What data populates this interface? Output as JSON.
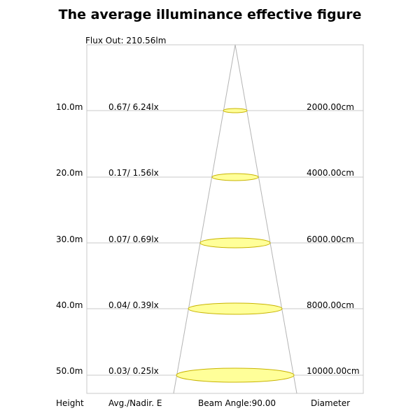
{
  "title": "The average illuminance effective figure",
  "flux_out": "Flux Out: 210.56lm",
  "rows": [
    {
      "height": "10.0m",
      "illuminance": "0.67/ 6.24lx",
      "diameter": "2000.00cm"
    },
    {
      "height": "20.0m",
      "illuminance": "0.17/ 1.56lx",
      "diameter": "4000.00cm"
    },
    {
      "height": "30.0m",
      "illuminance": "0.07/ 0.69lx",
      "diameter": "6000.00cm"
    },
    {
      "height": "40.0m",
      "illuminance": "0.04/ 0.39lx",
      "diameter": "8000.00cm"
    },
    {
      "height": "50.0m",
      "illuminance": "0.03/ 0.25lx",
      "diameter": "10000.00cm"
    }
  ],
  "footer": {
    "height_label": "Height",
    "illuminance_label": "Avg./Nadir. E",
    "beam_angle": "Beam Angle:90.00",
    "diameter_label": "Diameter"
  },
  "colors": {
    "spot_fill": "#ffff99",
    "spot_stroke": "#c8b400",
    "line": "#c8c8c8"
  }
}
